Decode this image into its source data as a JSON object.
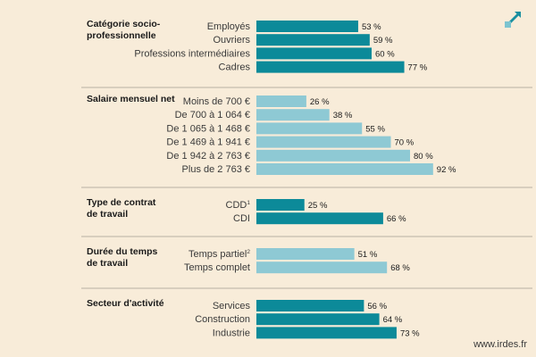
{
  "footer": {
    "url": "www.irdes.fr"
  },
  "icons": {
    "expand": "expand-arrow-icon"
  },
  "colors": {
    "background": "#f8ecd9",
    "dark_bar": "#0c8a99",
    "light_bar": "#8ec9d4",
    "icon": "#1a8fa0"
  },
  "chart_data": {
    "type": "bar",
    "orientation": "horizontal",
    "unit": "%",
    "groups": [
      {
        "title": [
          "Catégorie socio-",
          "professionnelle"
        ],
        "bar_color": "dark",
        "categories": [
          {
            "label": "Employés",
            "sup": "",
            "value": 53
          },
          {
            "label": "Ouvriers",
            "sup": "",
            "value": 59
          },
          {
            "label": "Professions intermédiaires",
            "sup": "",
            "value": 60
          },
          {
            "label": "Cadres",
            "sup": "",
            "value": 77
          }
        ]
      },
      {
        "title": [
          "Salaire mensuel net"
        ],
        "bar_color": "light",
        "categories": [
          {
            "label": "Moins de 700  €",
            "sup": "",
            "value": 26
          },
          {
            "label": "De 700 à 1 064  €",
            "sup": "",
            "value": 38
          },
          {
            "label": "De 1 065 à 1 468 €",
            "sup": "",
            "value": 55
          },
          {
            "label": "De 1 469 à 1 941 €",
            "sup": "",
            "value": 70
          },
          {
            "label": "De 1 942 à 2 763 €",
            "sup": "",
            "value": 80
          },
          {
            "label": "Plus de 2 763 €",
            "sup": "",
            "value": 92
          }
        ]
      },
      {
        "title": [
          "Type de contrat",
          "de travail"
        ],
        "bar_color": "dark",
        "categories": [
          {
            "label": "CDD",
            "sup": "1",
            "value": 25
          },
          {
            "label": "CDI",
            "sup": "",
            "value": 66
          }
        ]
      },
      {
        "title": [
          "Durée du temps",
          "de travail"
        ],
        "bar_color": "light",
        "categories": [
          {
            "label": "Temps partiel",
            "sup": "2",
            "value": 51
          },
          {
            "label": "Temps complet",
            "sup": "",
            "value": 68
          }
        ]
      },
      {
        "title": [
          "Secteur d'activité"
        ],
        "bar_color": "dark",
        "categories": [
          {
            "label": "Services",
            "sup": "",
            "value": 56
          },
          {
            "label": "Construction",
            "sup": "",
            "value": 64
          },
          {
            "label": "Industrie",
            "sup": "",
            "value": 73
          }
        ]
      }
    ]
  }
}
